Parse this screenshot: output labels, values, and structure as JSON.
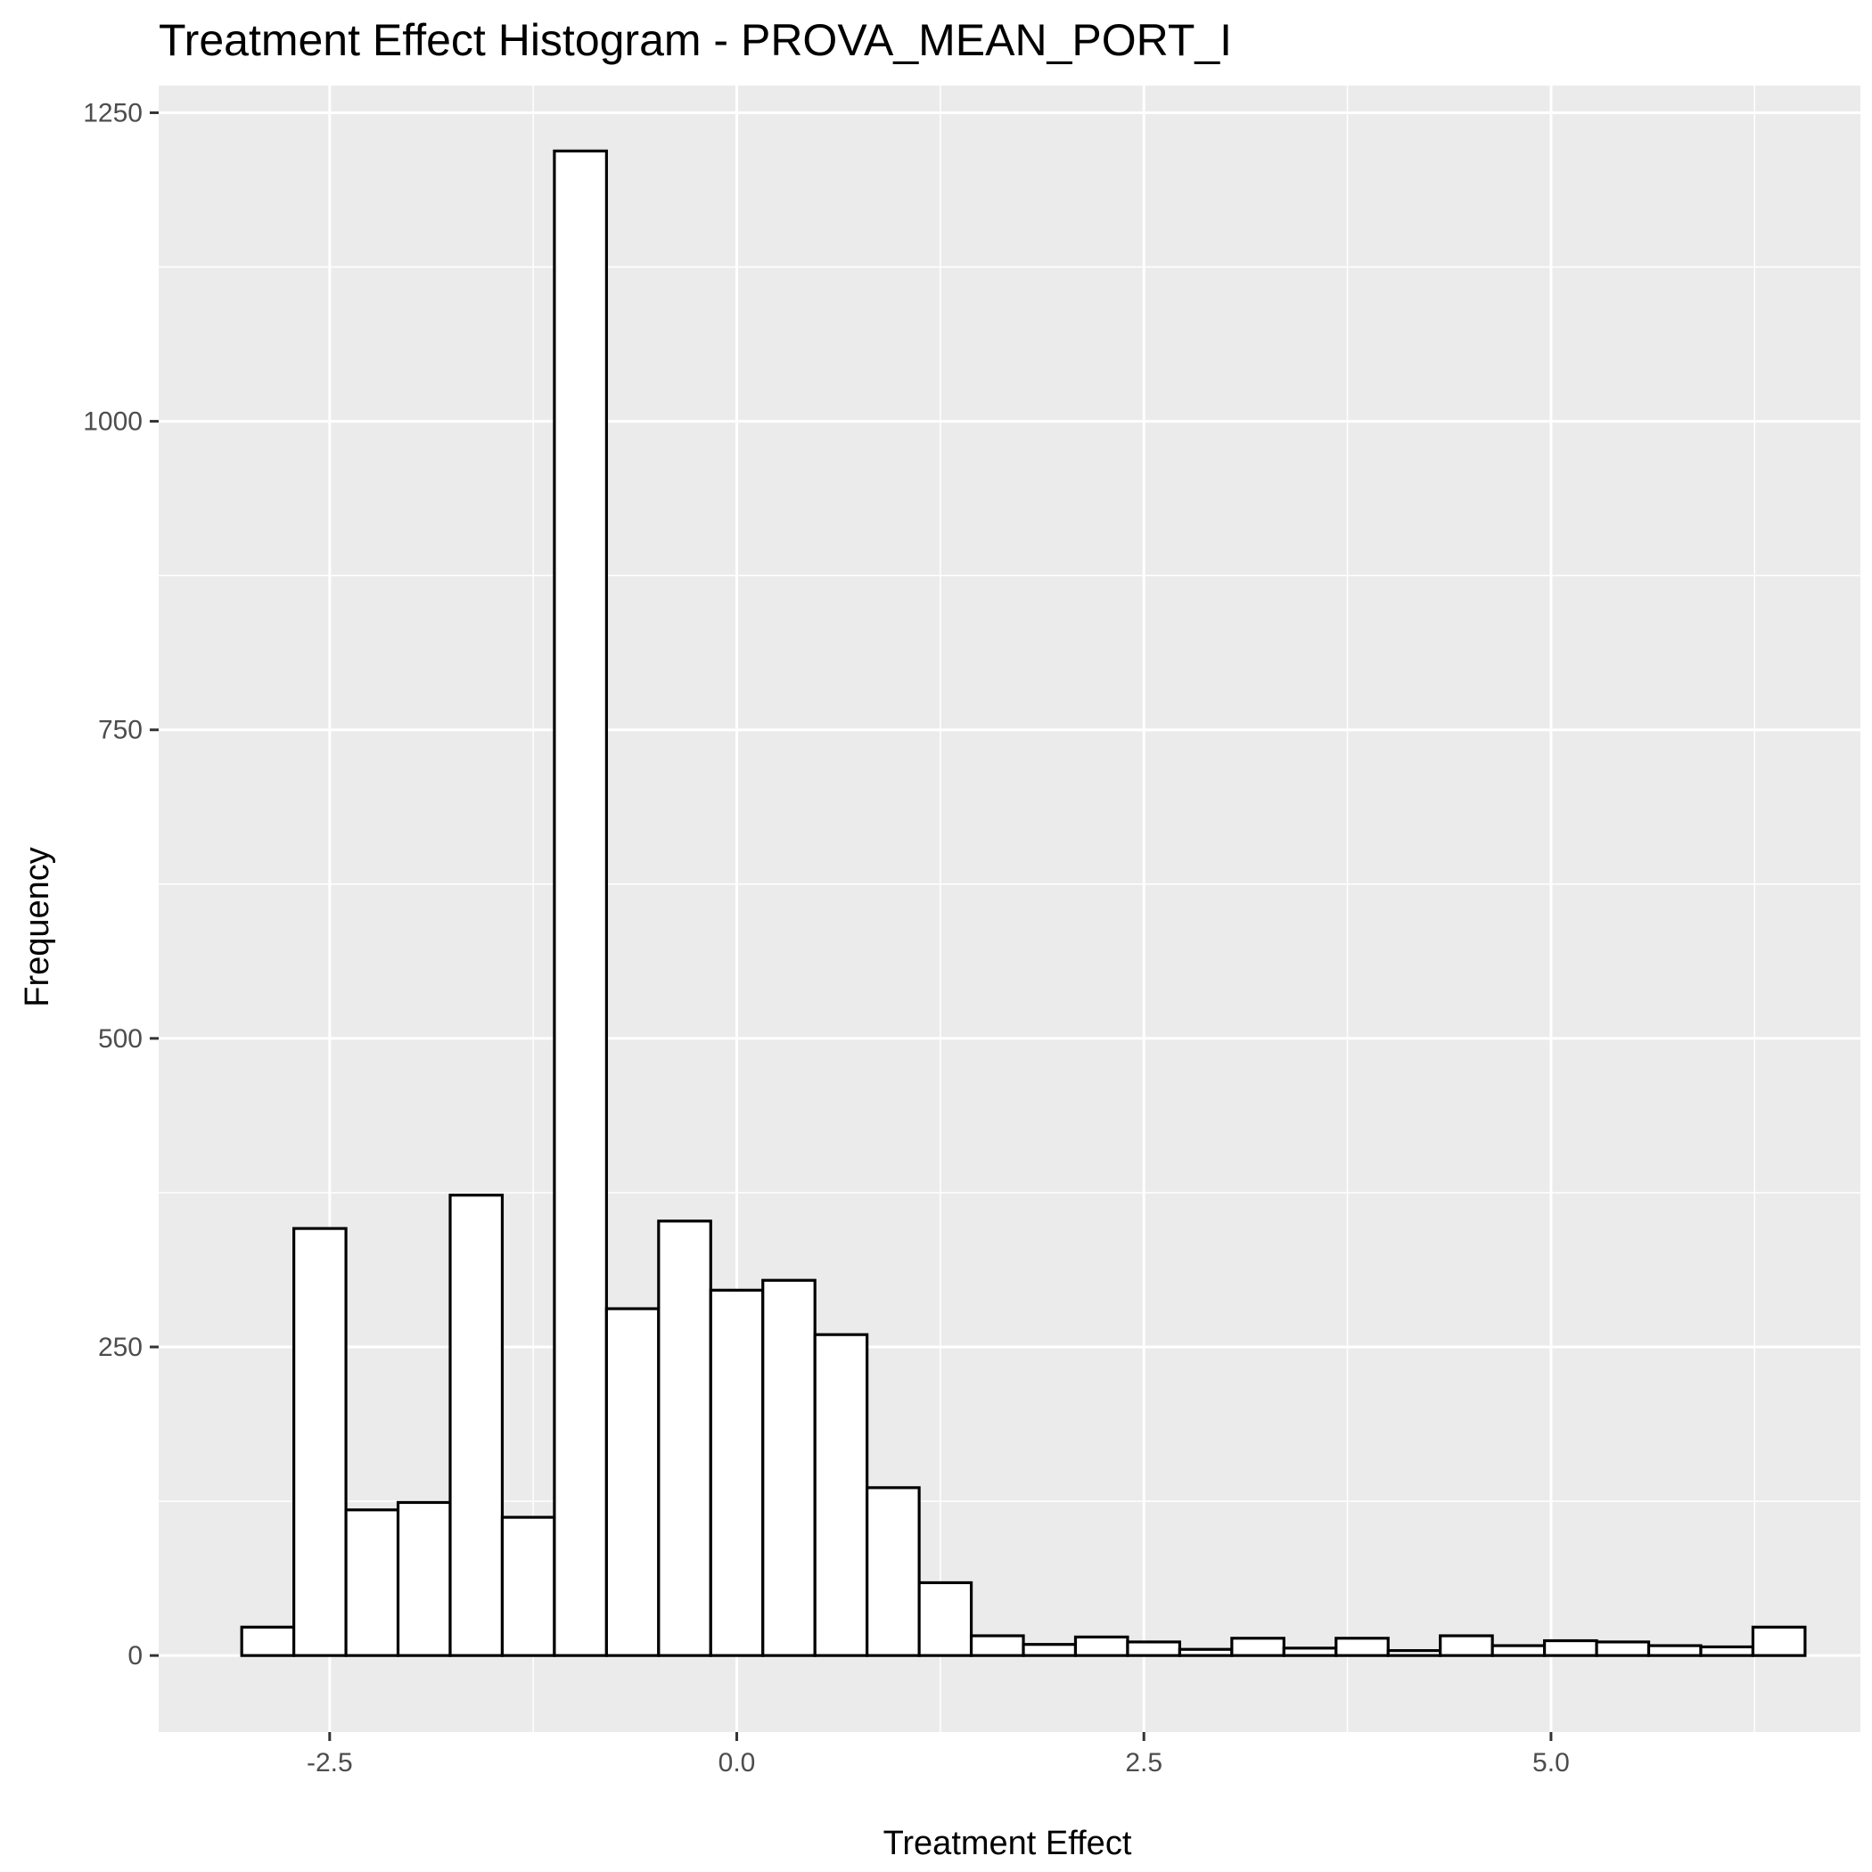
{
  "chart_data": {
    "type": "bar",
    "title": "Treatment Effect Histogram -  PROVA_MEAN_PORT_I",
    "xlabel": "Treatment Effect",
    "ylabel": "Frequency",
    "xlim": [
      -3.55,
      6.9
    ],
    "ylim": [
      -62,
      1272
    ],
    "x_ticks": [
      -2.5,
      0.0,
      2.5,
      5.0
    ],
    "x_tick_labels": [
      "-2.5",
      "0.0",
      "2.5",
      "5.0"
    ],
    "y_ticks": [
      0,
      250,
      500,
      750,
      1000,
      1250
    ],
    "y_tick_labels": [
      "0",
      "250",
      "500",
      "750",
      "1000",
      "1250"
    ],
    "bin_width": 0.32,
    "bins_start": [
      -3.04,
      -2.72,
      -2.4,
      -2.08,
      -1.76,
      -1.44,
      -1.12,
      -0.8,
      -0.48,
      -0.16,
      0.16,
      0.48,
      0.8,
      1.12,
      1.44,
      1.76,
      2.08,
      2.4,
      2.72,
      3.04,
      3.36,
      3.68,
      4.0,
      4.32,
      4.64,
      4.96,
      5.28,
      5.6,
      5.92,
      6.24
    ],
    "values": [
      23,
      346,
      118,
      124,
      373,
      112,
      1219,
      281,
      352,
      296,
      304,
      260,
      136,
      59,
      16,
      9,
      15,
      11,
      5,
      14,
      6,
      14,
      4,
      16,
      8,
      12,
      11,
      8,
      7,
      23
    ],
    "grid": true,
    "legend": "none",
    "colors": {
      "panel": "#ebebeb",
      "gridline": "#ffffff",
      "bar_fill": "#ffffff",
      "bar_stroke": "#000000",
      "tick_text": "#4d4d4d"
    }
  }
}
